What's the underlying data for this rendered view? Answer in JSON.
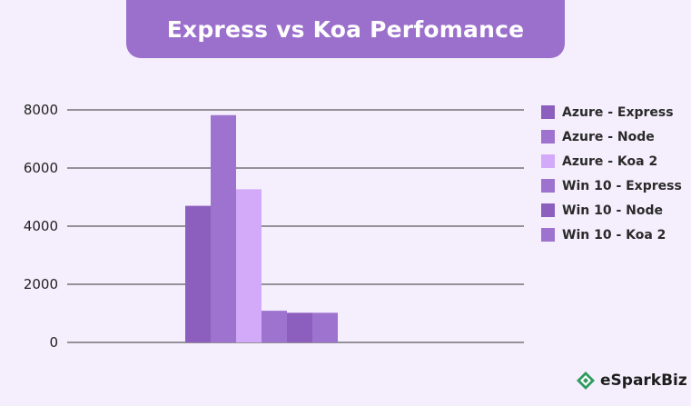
{
  "colors": {
    "background": "#f5effd",
    "title_banner": "#9b6fcc",
    "gridline": "#333333"
  },
  "brand": {
    "name": "eSparkBiz",
    "icon": "spark-logo-icon"
  },
  "chart_data": {
    "type": "bar",
    "title": "Express vs Koa Perfomance",
    "xlabel": "",
    "ylabel": "",
    "ylim": [
      0,
      8000
    ],
    "yticks": [
      0,
      2000,
      4000,
      6000,
      8000
    ],
    "grid": true,
    "legend_position": "right",
    "categories": [
      ""
    ],
    "series": [
      {
        "name": "Azure - Express",
        "values": [
          4700
        ],
        "color": "#8c5fbe"
      },
      {
        "name": "Azure - Node",
        "values": [
          7820
        ],
        "color": "#9d73cf"
      },
      {
        "name": "Azure - Koa 2",
        "values": [
          5270
        ],
        "color": "#d3aafa"
      },
      {
        "name": "Win 10 - Express",
        "values": [
          1090
        ],
        "color": "#9d73cf"
      },
      {
        "name": "Win 10 - Node",
        "values": [
          1020
        ],
        "color": "#8c5fbe"
      },
      {
        "name": "Win 10 - Koa 2",
        "values": [
          1020
        ],
        "color": "#9d73cf"
      }
    ]
  }
}
